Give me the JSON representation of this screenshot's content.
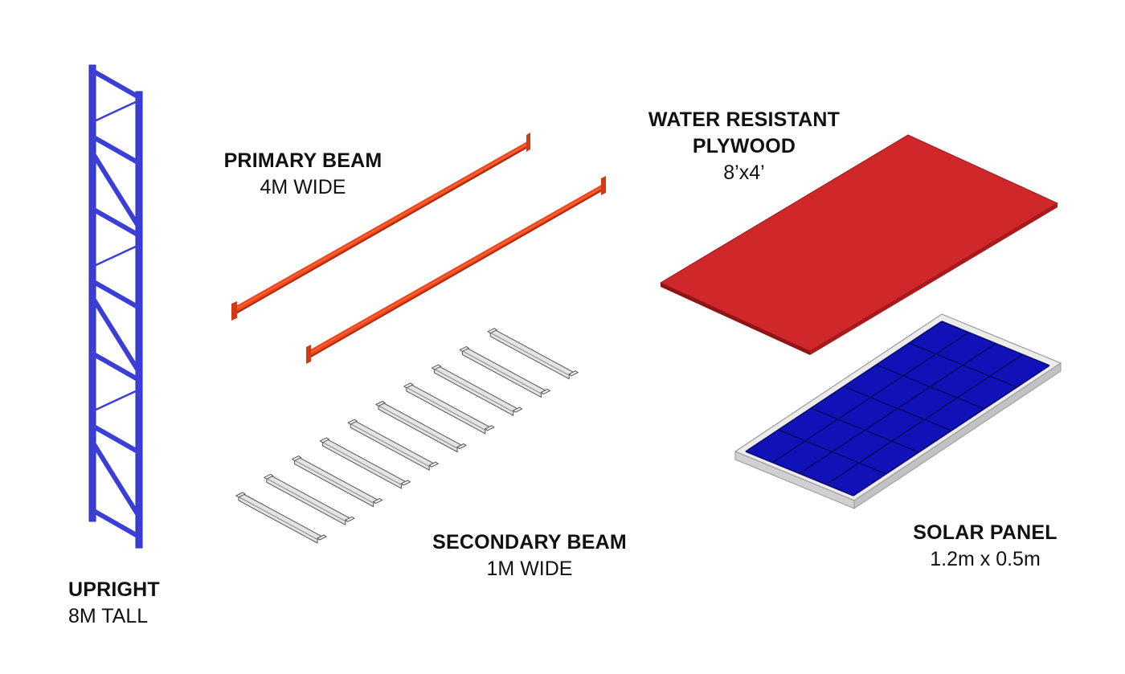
{
  "components": {
    "upright": {
      "title": "UPRIGHT",
      "spec": "8M TALL",
      "color": "#3b3fd6"
    },
    "primary_beam": {
      "title": "PRIMARY BEAM",
      "spec": "4M WIDE",
      "color": "#f0461c"
    },
    "plywood": {
      "title_line1": "WATER RESISTANT",
      "title_line2": "PLYWOOD",
      "spec": "8’x4’",
      "color": "#d0282a"
    },
    "secondary_beam": {
      "title": "SECONDARY BEAM",
      "spec": "1M WIDE",
      "color": "#e4e4e4",
      "count": 10
    },
    "solar_panel": {
      "title": "SOLAR PANEL",
      "spec": "1.2m x 0.5m",
      "color": "#1111b8",
      "frame_color": "#ececec"
    }
  }
}
